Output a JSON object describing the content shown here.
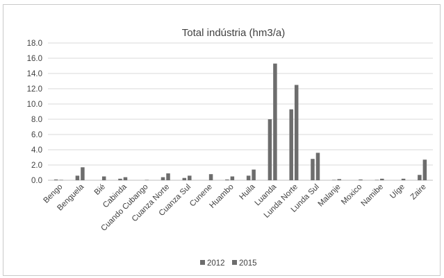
{
  "chart_data": {
    "type": "bar",
    "title": "Total indústria (hm3/a)",
    "xlabel": "",
    "ylabel": "",
    "ylim": [
      0,
      18
    ],
    "yticks": [
      "0.0",
      "2.0",
      "4.0",
      "6.0",
      "8.0",
      "10.0",
      "12.0",
      "14.0",
      "16.0",
      "18.0"
    ],
    "grid": true,
    "legend_position": "bottom",
    "categories": [
      "Bengo",
      "Benguela",
      "Bié",
      "Cabinda",
      "Cuando Cubango",
      "Cuanza Norte",
      "Cuanza Sul",
      "Cunene",
      "Huambo",
      "Huila",
      "Luanda",
      "Lunda Norte",
      "Lunda Sul",
      "Malanje",
      "Moxico",
      "Namibe",
      "Uíge",
      "Zaire"
    ],
    "series": [
      {
        "name": "2012",
        "color": "#6d6d6d",
        "values": [
          0.1,
          0.6,
          0.0,
          0.2,
          0.0,
          0.4,
          0.3,
          0.0,
          0.1,
          0.6,
          8.0,
          9.3,
          2.8,
          0.05,
          0.0,
          0.05,
          0.0,
          0.7
        ]
      },
      {
        "name": "2015",
        "color": "#6d6d6d",
        "values": [
          0.05,
          1.7,
          0.5,
          0.4,
          0.05,
          0.9,
          0.6,
          0.8,
          0.5,
          1.4,
          15.3,
          12.5,
          3.6,
          0.15,
          0.1,
          0.2,
          0.2,
          2.7
        ]
      }
    ]
  }
}
